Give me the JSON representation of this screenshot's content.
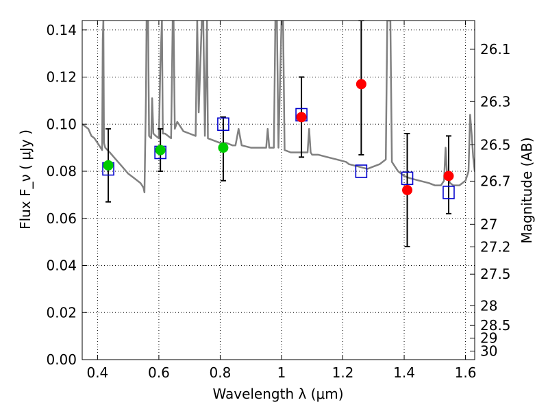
{
  "chart_data": {
    "type": "scatter",
    "xlabel": "Wavelength  λ (μm)",
    "ylabel": "Flux  F_ν  ( μJy )",
    "y2label": "Magnitude (AB)",
    "xlim": [
      0.35,
      1.63
    ],
    "ylim": [
      0.0,
      0.144
    ],
    "grid": true,
    "x_ticks": [
      0.4,
      0.6,
      0.8,
      1.0,
      1.2,
      1.4,
      1.6
    ],
    "x_tick_labels": [
      "0.4",
      "0.6",
      "0.8",
      "1",
      "1.2",
      "1.4",
      "1.6"
    ],
    "y_ticks": [
      0.0,
      0.02,
      0.04,
      0.06,
      0.08,
      0.1,
      0.12,
      0.14
    ],
    "y_tick_labels": [
      "0.00",
      "0.02",
      "0.04",
      "0.06",
      "0.08",
      "0.10",
      "0.12",
      "0.14"
    ],
    "mag_ticks": [
      {
        "flux": 0.1318,
        "label": "26.1"
      },
      {
        "flux": 0.1096,
        "label": "26.3"
      },
      {
        "flux": 0.0912,
        "label": "26.5"
      },
      {
        "flux": 0.0758,
        "label": "26.7"
      },
      {
        "flux": 0.0575,
        "label": "27"
      },
      {
        "flux": 0.0479,
        "label": "27.2"
      },
      {
        "flux": 0.0363,
        "label": "27.5"
      },
      {
        "flux": 0.0229,
        "label": "28"
      },
      {
        "flux": 0.0145,
        "label": "28.5"
      },
      {
        "flux": 0.0091,
        "label": "29"
      },
      {
        "flux": 0.0036,
        "label": "30"
      }
    ],
    "colors": {
      "model": "#808080",
      "obs_optical": "#00cc00",
      "obs_nir": "#ff0000",
      "model_bands": "#0000cc",
      "errorbar": "#000000"
    },
    "series": [
      {
        "kind": "line",
        "color_key": "model",
        "points": [
          [
            0.35,
            0.1
          ],
          [
            0.37,
            0.098
          ],
          [
            0.38,
            0.095
          ],
          [
            0.39,
            0.094
          ],
          [
            0.4,
            0.092
          ],
          [
            0.41,
            0.09
          ],
          [
            0.415,
            0.089
          ],
          [
            0.417,
            0.136
          ],
          [
            0.419,
            0.144
          ],
          [
            0.421,
            0.092
          ],
          [
            0.425,
            0.09
          ],
          [
            0.44,
            0.088
          ],
          [
            0.46,
            0.085
          ],
          [
            0.48,
            0.082
          ],
          [
            0.5,
            0.079
          ],
          [
            0.52,
            0.077
          ],
          [
            0.54,
            0.075
          ],
          [
            0.55,
            0.073
          ],
          [
            0.553,
            0.071
          ],
          [
            0.558,
            0.112
          ],
          [
            0.56,
            0.144
          ],
          [
            0.565,
            0.144
          ],
          [
            0.568,
            0.095
          ],
          [
            0.575,
            0.094
          ],
          [
            0.578,
            0.111
          ],
          [
            0.582,
            0.096
          ],
          [
            0.59,
            0.095
          ],
          [
            0.6,
            0.094
          ],
          [
            0.605,
            0.126
          ],
          [
            0.61,
            0.144
          ],
          [
            0.613,
            0.096
          ],
          [
            0.62,
            0.096
          ],
          [
            0.63,
            0.095
          ],
          [
            0.64,
            0.094
          ],
          [
            0.645,
            0.144
          ],
          [
            0.648,
            0.144
          ],
          [
            0.652,
            0.098
          ],
          [
            0.66,
            0.101
          ],
          [
            0.67,
            0.099
          ],
          [
            0.68,
            0.097
          ],
          [
            0.7,
            0.096
          ],
          [
            0.72,
            0.095
          ],
          [
            0.725,
            0.144
          ],
          [
            0.73,
            0.105
          ],
          [
            0.74,
            0.144
          ],
          [
            0.745,
            0.144
          ],
          [
            0.75,
            0.095
          ],
          [
            0.757,
            0.144
          ],
          [
            0.76,
            0.094
          ],
          [
            0.78,
            0.093
          ],
          [
            0.8,
            0.092
          ],
          [
            0.81,
            0.092
          ],
          [
            0.82,
            0.092
          ],
          [
            0.84,
            0.091
          ],
          [
            0.85,
            0.091
          ],
          [
            0.86,
            0.098
          ],
          [
            0.87,
            0.091
          ],
          [
            0.9,
            0.09
          ],
          [
            0.92,
            0.09
          ],
          [
            0.95,
            0.09
          ],
          [
            0.955,
            0.098
          ],
          [
            0.96,
            0.09
          ],
          [
            0.975,
            0.09
          ],
          [
            0.98,
            0.144
          ],
          [
            0.985,
            0.144
          ],
          [
            0.99,
            0.09
          ],
          [
            1.0,
            0.144
          ],
          [
            1.005,
            0.144
          ],
          [
            1.01,
            0.089
          ],
          [
            1.03,
            0.088
          ],
          [
            1.05,
            0.088
          ],
          [
            1.07,
            0.088
          ],
          [
            1.085,
            0.088
          ],
          [
            1.09,
            0.098
          ],
          [
            1.095,
            0.088
          ],
          [
            1.1,
            0.087
          ],
          [
            1.12,
            0.087
          ],
          [
            1.15,
            0.086
          ],
          [
            1.18,
            0.085
          ],
          [
            1.21,
            0.084
          ],
          [
            1.22,
            0.083
          ],
          [
            1.25,
            0.082
          ],
          [
            1.28,
            0.081
          ],
          [
            1.3,
            0.082
          ],
          [
            1.32,
            0.083
          ],
          [
            1.34,
            0.085
          ],
          [
            1.345,
            0.144
          ],
          [
            1.355,
            0.144
          ],
          [
            1.36,
            0.084
          ],
          [
            1.38,
            0.08
          ],
          [
            1.4,
            0.078
          ],
          [
            1.42,
            0.077
          ],
          [
            1.45,
            0.076
          ],
          [
            1.48,
            0.075
          ],
          [
            1.5,
            0.074
          ],
          [
            1.52,
            0.074
          ],
          [
            1.53,
            0.076
          ],
          [
            1.535,
            0.09
          ],
          [
            1.54,
            0.078
          ],
          [
            1.55,
            0.075
          ],
          [
            1.56,
            0.074
          ],
          [
            1.58,
            0.074
          ],
          [
            1.6,
            0.076
          ],
          [
            1.61,
            0.08
          ],
          [
            1.615,
            0.104
          ],
          [
            1.62,
            0.096
          ],
          [
            1.625,
            0.086
          ],
          [
            1.63,
            0.08
          ]
        ]
      },
      {
        "kind": "errorbar",
        "points": [
          {
            "x": 0.435,
            "lo": 0.067,
            "hi": 0.098
          },
          {
            "x": 0.605,
            "lo": 0.08,
            "hi": 0.098
          },
          {
            "x": 0.81,
            "lo": 0.076,
            "hi": 0.103
          },
          {
            "x": 1.065,
            "lo": 0.086,
            "hi": 0.12
          },
          {
            "x": 1.26,
            "lo": 0.087,
            "hi": 0.144
          },
          {
            "x": 1.41,
            "lo": 0.048,
            "hi": 0.096
          },
          {
            "x": 1.545,
            "lo": 0.062,
            "hi": 0.095
          }
        ]
      },
      {
        "kind": "squares",
        "color_key": "model_bands",
        "points": [
          {
            "x": 0.435,
            "y": 0.081
          },
          {
            "x": 0.605,
            "y": 0.088
          },
          {
            "x": 0.81,
            "y": 0.1
          },
          {
            "x": 1.065,
            "y": 0.104
          },
          {
            "x": 1.26,
            "y": 0.08
          },
          {
            "x": 1.41,
            "y": 0.077
          },
          {
            "x": 1.545,
            "y": 0.071
          }
        ]
      },
      {
        "kind": "circles",
        "color_key": "obs_optical",
        "points": [
          {
            "x": 0.435,
            "y": 0.0825
          },
          {
            "x": 0.605,
            "y": 0.089
          },
          {
            "x": 0.81,
            "y": 0.09
          }
        ]
      },
      {
        "kind": "circles",
        "color_key": "obs_nir",
        "points": [
          {
            "x": 1.065,
            "y": 0.103
          },
          {
            "x": 1.26,
            "y": 0.117
          },
          {
            "x": 1.41,
            "y": 0.072
          },
          {
            "x": 1.545,
            "y": 0.078
          }
        ]
      }
    ]
  }
}
